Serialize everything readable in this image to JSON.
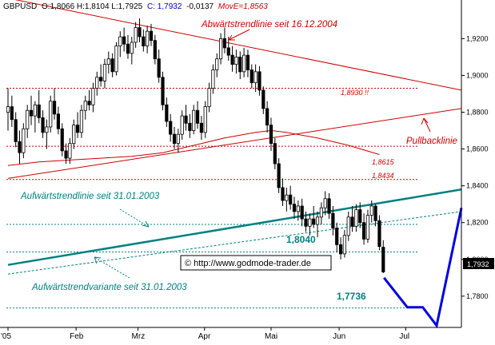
{
  "header": {
    "symbol": "GBPUSD",
    "ohlc": "O:1,8066 H:1,8104 L:1,7925",
    "close": "C: 1,7932",
    "change": "-0,0137",
    "move": "MovE=1,8563"
  },
  "colors": {
    "background": "#ffffff",
    "candle": "#000000",
    "resistance": "#cc0000",
    "support": "#008080",
    "projection": "#0000dd",
    "moving_average": "#cc0000",
    "axis_text": "#000000"
  },
  "copyright": "© http://www.godmode-trader.de",
  "last_price_tag": "1,7932",
  "annotations": {
    "downtrend_label": "Abwärtstrendlinie seit 16.12.2004",
    "pullback_label": "Pullbacklinie",
    "uptrend_label": "Aufwärtstrendlinie seit 31.01.2003",
    "uptrend_variant_label": "Aufwärtstrendvariante seit 31.01.2003",
    "level_18930": "1,8930 !!",
    "level_18615": "1,8615",
    "level_18434": "1,8434",
    "level_18040": "1,8040",
    "level_17736": "1,7736"
  },
  "chart_data": {
    "type": "candlestick",
    "title": "GBPUSD",
    "xlabel": "",
    "ylabel": "",
    "x_tick_labels": [
      "'05",
      "Feb",
      "Mrz",
      "Apr",
      "Mai",
      "Jun",
      "Jul"
    ],
    "y_tick_labels": [
      "1,9200",
      "1,9000",
      "1,8800",
      "1,8600",
      "1,8400",
      "1,8200",
      "1,8000",
      "1,7800"
    ],
    "y_ticks": [
      1.92,
      1.9,
      1.88,
      1.86,
      1.84,
      1.82,
      1.8,
      1.78
    ],
    "ylim": [
      1.763,
      1.941
    ],
    "x_range_weeks": [
      0,
      29.3
    ],
    "grid": false,
    "candles": [
      {
        "w": 0.0,
        "o": 1.88,
        "h": 1.893,
        "l": 1.87,
        "c": 1.883
      },
      {
        "w": 0.25,
        "o": 1.883,
        "h": 1.889,
        "l": 1.872,
        "c": 1.876
      },
      {
        "w": 0.5,
        "o": 1.876,
        "h": 1.88,
        "l": 1.861,
        "c": 1.864
      },
      {
        "w": 0.75,
        "o": 1.864,
        "h": 1.87,
        "l": 1.852,
        "c": 1.858
      },
      {
        "w": 1.0,
        "o": 1.858,
        "h": 1.874,
        "l": 1.855,
        "c": 1.871
      },
      {
        "w": 1.25,
        "o": 1.871,
        "h": 1.884,
        "l": 1.866,
        "c": 1.881
      },
      {
        "w": 1.5,
        "o": 1.881,
        "h": 1.889,
        "l": 1.873,
        "c": 1.878
      },
      {
        "w": 1.75,
        "o": 1.878,
        "h": 1.886,
        "l": 1.869,
        "c": 1.884
      },
      {
        "w": 2.0,
        "o": 1.884,
        "h": 1.892,
        "l": 1.874,
        "c": 1.877
      },
      {
        "w": 2.25,
        "o": 1.877,
        "h": 1.881,
        "l": 1.866,
        "c": 1.869
      },
      {
        "w": 2.5,
        "o": 1.869,
        "h": 1.876,
        "l": 1.86,
        "c": 1.872
      },
      {
        "w": 2.75,
        "o": 1.872,
        "h": 1.889,
        "l": 1.869,
        "c": 1.886
      },
      {
        "w": 3.0,
        "o": 1.886,
        "h": 1.893,
        "l": 1.876,
        "c": 1.879
      },
      {
        "w": 3.25,
        "o": 1.879,
        "h": 1.883,
        "l": 1.868,
        "c": 1.871
      },
      {
        "w": 3.5,
        "o": 1.871,
        "h": 1.874,
        "l": 1.856,
        "c": 1.859
      },
      {
        "w": 3.75,
        "o": 1.859,
        "h": 1.863,
        "l": 1.852,
        "c": 1.855
      },
      {
        "w": 4.0,
        "o": 1.855,
        "h": 1.866,
        "l": 1.852,
        "c": 1.863
      },
      {
        "w": 4.25,
        "o": 1.863,
        "h": 1.876,
        "l": 1.86,
        "c": 1.873
      },
      {
        "w": 4.5,
        "o": 1.873,
        "h": 1.88,
        "l": 1.866,
        "c": 1.869
      },
      {
        "w": 4.75,
        "o": 1.869,
        "h": 1.884,
        "l": 1.866,
        "c": 1.881
      },
      {
        "w": 5.0,
        "o": 1.881,
        "h": 1.889,
        "l": 1.876,
        "c": 1.886
      },
      {
        "w": 5.25,
        "o": 1.886,
        "h": 1.892,
        "l": 1.881,
        "c": 1.884
      },
      {
        "w": 5.5,
        "o": 1.884,
        "h": 1.896,
        "l": 1.88,
        "c": 1.893
      },
      {
        "w": 5.75,
        "o": 1.893,
        "h": 1.902,
        "l": 1.889,
        "c": 1.899
      },
      {
        "w": 6.0,
        "o": 1.899,
        "h": 1.906,
        "l": 1.894,
        "c": 1.897
      },
      {
        "w": 6.25,
        "o": 1.897,
        "h": 1.909,
        "l": 1.893,
        "c": 1.906
      },
      {
        "w": 6.5,
        "o": 1.906,
        "h": 1.913,
        "l": 1.901,
        "c": 1.909
      },
      {
        "w": 6.75,
        "o": 1.909,
        "h": 1.912,
        "l": 1.899,
        "c": 1.902
      },
      {
        "w": 7.0,
        "o": 1.902,
        "h": 1.918,
        "l": 1.9,
        "c": 1.916
      },
      {
        "w": 7.25,
        "o": 1.916,
        "h": 1.924,
        "l": 1.91,
        "c": 1.921
      },
      {
        "w": 7.5,
        "o": 1.921,
        "h": 1.926,
        "l": 1.913,
        "c": 1.917
      },
      {
        "w": 7.75,
        "o": 1.917,
        "h": 1.922,
        "l": 1.909,
        "c": 1.912
      },
      {
        "w": 8.0,
        "o": 1.912,
        "h": 1.921,
        "l": 1.906,
        "c": 1.918
      },
      {
        "w": 8.25,
        "o": 1.918,
        "h": 1.929,
        "l": 1.915,
        "c": 1.926
      },
      {
        "w": 8.5,
        "o": 1.926,
        "h": 1.931,
        "l": 1.918,
        "c": 1.921
      },
      {
        "w": 8.75,
        "o": 1.921,
        "h": 1.925,
        "l": 1.913,
        "c": 1.916
      },
      {
        "w": 9.0,
        "o": 1.916,
        "h": 1.927,
        "l": 1.912,
        "c": 1.924
      },
      {
        "w": 9.25,
        "o": 1.924,
        "h": 1.928,
        "l": 1.916,
        "c": 1.919
      },
      {
        "w": 9.5,
        "o": 1.919,
        "h": 1.922,
        "l": 1.906,
        "c": 1.909
      },
      {
        "w": 9.75,
        "o": 1.909,
        "h": 1.914,
        "l": 1.896,
        "c": 1.899
      },
      {
        "w": 10.0,
        "o": 1.899,
        "h": 1.902,
        "l": 1.881,
        "c": 1.884
      },
      {
        "w": 10.25,
        "o": 1.884,
        "h": 1.888,
        "l": 1.872,
        "c": 1.875
      },
      {
        "w": 10.5,
        "o": 1.875,
        "h": 1.879,
        "l": 1.864,
        "c": 1.868
      },
      {
        "w": 10.75,
        "o": 1.868,
        "h": 1.872,
        "l": 1.86,
        "c": 1.863
      },
      {
        "w": 11.0,
        "o": 1.863,
        "h": 1.871,
        "l": 1.858,
        "c": 1.868
      },
      {
        "w": 11.25,
        "o": 1.868,
        "h": 1.881,
        "l": 1.865,
        "c": 1.878
      },
      {
        "w": 11.5,
        "o": 1.878,
        "h": 1.884,
        "l": 1.87,
        "c": 1.874
      },
      {
        "w": 11.75,
        "o": 1.874,
        "h": 1.879,
        "l": 1.866,
        "c": 1.87
      },
      {
        "w": 12.0,
        "o": 1.87,
        "h": 1.884,
        "l": 1.868,
        "c": 1.881
      },
      {
        "w": 12.25,
        "o": 1.881,
        "h": 1.886,
        "l": 1.871,
        "c": 1.874
      },
      {
        "w": 12.5,
        "o": 1.874,
        "h": 1.878,
        "l": 1.865,
        "c": 1.869
      },
      {
        "w": 12.75,
        "o": 1.869,
        "h": 1.886,
        "l": 1.866,
        "c": 1.883
      },
      {
        "w": 13.0,
        "o": 1.883,
        "h": 1.896,
        "l": 1.88,
        "c": 1.893
      },
      {
        "w": 13.25,
        "o": 1.893,
        "h": 1.906,
        "l": 1.89,
        "c": 1.903
      },
      {
        "w": 13.5,
        "o": 1.903,
        "h": 1.912,
        "l": 1.899,
        "c": 1.909
      },
      {
        "w": 13.75,
        "o": 1.909,
        "h": 1.923,
        "l": 1.906,
        "c": 1.92
      },
      {
        "w": 14.0,
        "o": 1.92,
        "h": 1.926,
        "l": 1.912,
        "c": 1.915
      },
      {
        "w": 14.25,
        "o": 1.915,
        "h": 1.921,
        "l": 1.908,
        "c": 1.911
      },
      {
        "w": 14.5,
        "o": 1.911,
        "h": 1.916,
        "l": 1.902,
        "c": 1.906
      },
      {
        "w": 14.75,
        "o": 1.906,
        "h": 1.914,
        "l": 1.901,
        "c": 1.91
      },
      {
        "w": 15.0,
        "o": 1.91,
        "h": 1.913,
        "l": 1.898,
        "c": 1.902
      },
      {
        "w": 15.25,
        "o": 1.902,
        "h": 1.915,
        "l": 1.899,
        "c": 1.911
      },
      {
        "w": 15.5,
        "o": 1.911,
        "h": 1.914,
        "l": 1.899,
        "c": 1.903
      },
      {
        "w": 15.75,
        "o": 1.903,
        "h": 1.906,
        "l": 1.893,
        "c": 1.896
      },
      {
        "w": 16.0,
        "o": 1.896,
        "h": 1.906,
        "l": 1.891,
        "c": 1.902
      },
      {
        "w": 16.25,
        "o": 1.902,
        "h": 1.905,
        "l": 1.889,
        "c": 1.892
      },
      {
        "w": 16.5,
        "o": 1.892,
        "h": 1.894,
        "l": 1.879,
        "c": 1.882
      },
      {
        "w": 16.75,
        "o": 1.882,
        "h": 1.886,
        "l": 1.869,
        "c": 1.873
      },
      {
        "w": 17.0,
        "o": 1.873,
        "h": 1.877,
        "l": 1.859,
        "c": 1.863
      },
      {
        "w": 17.25,
        "o": 1.863,
        "h": 1.866,
        "l": 1.849,
        "c": 1.852
      },
      {
        "w": 17.5,
        "o": 1.852,
        "h": 1.855,
        "l": 1.836,
        "c": 1.839
      },
      {
        "w": 17.75,
        "o": 1.839,
        "h": 1.844,
        "l": 1.829,
        "c": 1.832
      },
      {
        "w": 18.0,
        "o": 1.832,
        "h": 1.839,
        "l": 1.826,
        "c": 1.835
      },
      {
        "w": 18.25,
        "o": 1.835,
        "h": 1.84,
        "l": 1.827,
        "c": 1.83
      },
      {
        "w": 18.5,
        "o": 1.83,
        "h": 1.834,
        "l": 1.822,
        "c": 1.826
      },
      {
        "w": 18.75,
        "o": 1.826,
        "h": 1.832,
        "l": 1.821,
        "c": 1.829
      },
      {
        "w": 19.0,
        "o": 1.829,
        "h": 1.833,
        "l": 1.818,
        "c": 1.822
      },
      {
        "w": 19.25,
        "o": 1.822,
        "h": 1.826,
        "l": 1.815,
        "c": 1.818
      },
      {
        "w": 19.5,
        "o": 1.818,
        "h": 1.825,
        "l": 1.813,
        "c": 1.822
      },
      {
        "w": 19.75,
        "o": 1.822,
        "h": 1.829,
        "l": 1.817,
        "c": 1.819
      },
      {
        "w": 20.0,
        "o": 1.819,
        "h": 1.826,
        "l": 1.812,
        "c": 1.823
      },
      {
        "w": 20.25,
        "o": 1.823,
        "h": 1.831,
        "l": 1.819,
        "c": 1.828
      },
      {
        "w": 20.5,
        "o": 1.828,
        "h": 1.837,
        "l": 1.824,
        "c": 1.833
      },
      {
        "w": 20.75,
        "o": 1.833,
        "h": 1.836,
        "l": 1.822,
        "c": 1.825
      },
      {
        "w": 21.0,
        "o": 1.825,
        "h": 1.829,
        "l": 1.813,
        "c": 1.817
      },
      {
        "w": 21.25,
        "o": 1.817,
        "h": 1.82,
        "l": 1.804,
        "c": 1.808
      },
      {
        "w": 21.5,
        "o": 1.808,
        "h": 1.812,
        "l": 1.8,
        "c": 1.803
      },
      {
        "w": 21.75,
        "o": 1.803,
        "h": 1.816,
        "l": 1.801,
        "c": 1.813
      },
      {
        "w": 22.0,
        "o": 1.813,
        "h": 1.826,
        "l": 1.81,
        "c": 1.823
      },
      {
        "w": 22.25,
        "o": 1.823,
        "h": 1.829,
        "l": 1.815,
        "c": 1.818
      },
      {
        "w": 22.5,
        "o": 1.818,
        "h": 1.83,
        "l": 1.815,
        "c": 1.827
      },
      {
        "w": 22.75,
        "o": 1.827,
        "h": 1.831,
        "l": 1.817,
        "c": 1.82
      },
      {
        "w": 23.0,
        "o": 1.82,
        "h": 1.825,
        "l": 1.808,
        "c": 1.811
      },
      {
        "w": 23.25,
        "o": 1.811,
        "h": 1.827,
        "l": 1.809,
        "c": 1.824
      },
      {
        "w": 23.5,
        "o": 1.824,
        "h": 1.832,
        "l": 1.82,
        "c": 1.829
      },
      {
        "w": 23.75,
        "o": 1.829,
        "h": 1.83,
        "l": 1.818,
        "c": 1.821
      },
      {
        "w": 24.0,
        "o": 1.821,
        "h": 1.824,
        "l": 1.805,
        "c": 1.807
      },
      {
        "w": 24.25,
        "o": 1.8066,
        "h": 1.8104,
        "l": 1.7925,
        "c": 1.7932
      }
    ],
    "moving_average": {
      "label": "MovE=1,8563",
      "points": [
        [
          0.0,
          1.851
        ],
        [
          2.0,
          1.853
        ],
        [
          4.0,
          1.854
        ],
        [
          6.0,
          1.855
        ],
        [
          8.0,
          1.856
        ],
        [
          10.0,
          1.858
        ],
        [
          12.0,
          1.862
        ],
        [
          14.0,
          1.866
        ],
        [
          16.0,
          1.869
        ],
        [
          17.0,
          1.87
        ],
        [
          18.0,
          1.869
        ],
        [
          20.0,
          1.866
        ],
        [
          22.0,
          1.862
        ],
        [
          24.0,
          1.857
        ]
      ]
    },
    "trend_lines": [
      {
        "name": "Abwärtstrendlinie",
        "style": "solid",
        "color": "#cc0000",
        "points": [
          [
            0.0,
            1.942
          ],
          [
            29.3,
            1.892
          ]
        ]
      },
      {
        "name": "Pullbacklinie",
        "style": "solid",
        "color": "#cc0000",
        "points": [
          [
            0.0,
            1.844
          ],
          [
            29.3,
            1.882
          ]
        ]
      },
      {
        "name": "Aufwärtstrendlinie",
        "style": "solid",
        "color": "#008080",
        "points": [
          [
            0.0,
            1.797
          ],
          [
            29.3,
            1.838
          ]
        ]
      },
      {
        "name": "Aufwärtstrendvariante",
        "style": "dashed",
        "color": "#008080",
        "points": [
          [
            0.0,
            1.792
          ],
          [
            29.3,
            1.826
          ]
        ]
      }
    ],
    "horizontal_levels": [
      {
        "value": 1.893,
        "label": "1,8930 !!",
        "color": "#cc0000"
      },
      {
        "value": 1.8615,
        "label": "1,8615",
        "color": "#cc0000"
      },
      {
        "value": 1.8434,
        "label": "1,8434",
        "color": "#cc0000"
      },
      {
        "value": 1.819,
        "label": "",
        "color": "#008080"
      },
      {
        "value": 1.804,
        "label": "1,8040",
        "color": "#008080"
      },
      {
        "value": 1.7736,
        "label": "1,7736",
        "color": "#008080"
      }
    ],
    "projection": {
      "color": "#0000dd",
      "points": [
        [
          24.3,
          1.79
        ],
        [
          25.8,
          1.774
        ],
        [
          26.8,
          1.774
        ],
        [
          27.7,
          1.764
        ],
        [
          29.3,
          1.828
        ]
      ]
    },
    "last_price": 1.7932
  }
}
